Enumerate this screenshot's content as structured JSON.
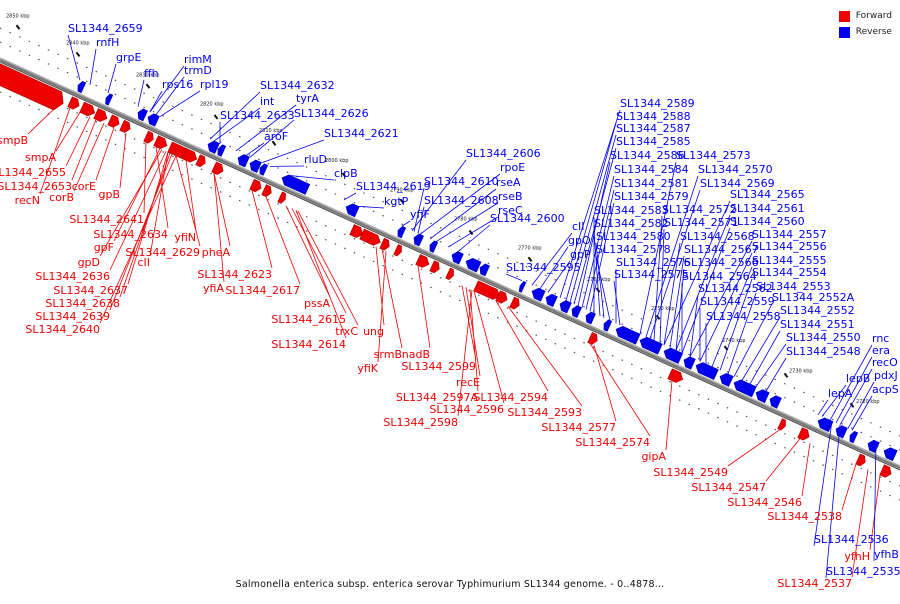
{
  "caption": "Salmonella enterica subsp. enterica serovar Typhimurium SL1344 genome. - 0..4878...",
  "legend": [
    {
      "label": "Forward",
      "color": "#ee0000"
    },
    {
      "label": "Reverse",
      "color": "#0000ee"
    }
  ],
  "colors": {
    "forward": "#ee0000",
    "reverse": "#0000ee",
    "backbone": "#777777"
  },
  "ticks": [
    "2850 kbp",
    "2840 kbp",
    "2830 kbp",
    "2820 kbp",
    "2810 kbp",
    "2800 kbp",
    "2790 kbp",
    "2780 kbp",
    "2770 kbp",
    "2760 kbp",
    "2750 kbp",
    "2740 kbp",
    "2730 kbp",
    "2720 kbp"
  ],
  "forward_genes": [
    "smpB",
    "smpA",
    "SL1344_2655",
    "SL1344_2653",
    "recN",
    "corB",
    "corE",
    "gpB",
    "SL1344_2641",
    "SL1344_2634",
    "gpF",
    "SL1344_2629",
    "yfiN",
    "gpD",
    "cII",
    "SL1344_2636",
    "SL1344_2637",
    "SL1344_2638",
    "SL1344_2639",
    "SL1344_2640",
    "pheA",
    "yfiA",
    "SL1344_2623",
    "SL1344_2617",
    "pssA",
    "SL1344_2615",
    "trxC",
    "SL1344_2614",
    "ung",
    "srmB",
    "yfiK",
    "nadB",
    "SL1344_2599",
    "recE",
    "SL1344_2597A",
    "SL1344_2596",
    "SL1344_2598",
    "SL1344_2594",
    "SL1344_2593",
    "SL1344_2577",
    "SL1344_2574",
    "gipA",
    "SL1344_2549",
    "SL1344_2547",
    "SL1344_2546",
    "SL1344_2538",
    "yfhH",
    "SL1344_2537"
  ],
  "reverse_genes": [
    "SL1344_2659",
    "rnfH",
    "grpE",
    "ffh",
    "rimM",
    "trmD",
    "rps16",
    "rpl19",
    "SL1344_2632",
    "int",
    "tyrA",
    "SL1344_2633",
    "SL1344_2626",
    "aroF",
    "SL1344_2621",
    "rluD",
    "clpB",
    "SL1344_2619",
    "kgtP",
    "yfiF",
    "SL1344_2606",
    "rpoE",
    "rseA",
    "SL1344_2610",
    "rseB",
    "SL1344_2608",
    "rseC",
    "SL1344_2600",
    "SL1344_2595",
    "cII",
    "gpO",
    "gpP",
    "SL1344_2589",
    "SL1344_2588",
    "SL1344_2587",
    "SL1344_2585",
    "SL1344_2586",
    "SL1344_2573",
    "SL1344_2584",
    "SL1344_2570",
    "SL1344_2581",
    "SL1344_2569",
    "SL1344_2579",
    "SL1344_2565",
    "SL1344_2583",
    "SL1344_2572",
    "SL1344_2561",
    "SL1344_2582",
    "SL1344_2571",
    "SL1344_2560",
    "SL1344_2580",
    "SL1344_2568",
    "SL1344_2557",
    "SL1344_2578",
    "SL1344_2567",
    "SL1344_2556",
    "SL1344_2576",
    "SL1344_2566",
    "SL1344_2555",
    "SL1344_2575",
    "SL1344_2564",
    "SL1344_2554",
    "SL1344_2562",
    "SL1344_2553",
    "SL1344_2559",
    "SL1344_2552A",
    "SL1344_2558",
    "SL1344_2552",
    "SL1344_2551",
    "SL1344_2550",
    "SL1344_2548",
    "rnc",
    "era",
    "recO",
    "lepB",
    "pdxJ",
    "lepA",
    "acpS",
    "SL1344_2536",
    "SL1344_2535",
    "yfhB"
  ]
}
